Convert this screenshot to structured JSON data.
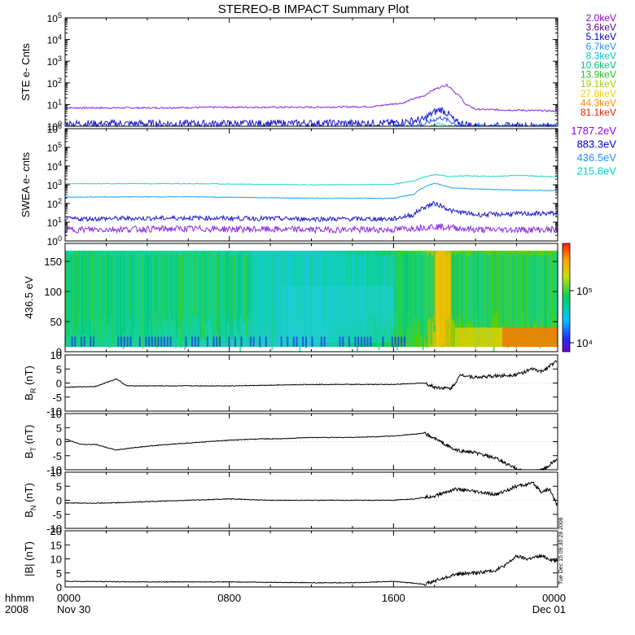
{
  "title": "STEREO-B IMPACT Summary Plot",
  "time_axis": {
    "corner_labels": [
      "hhmm",
      "2008"
    ],
    "ticks": [
      {
        "hour": 0,
        "label": "0000",
        "sub": "Nov 30"
      },
      {
        "hour": 8,
        "label": "0800",
        "sub": ""
      },
      {
        "hour": 16,
        "label": "1600",
        "sub": ""
      },
      {
        "hour": 24,
        "label": "0000",
        "sub": "Dec 01"
      }
    ],
    "range_hours": [
      0,
      24
    ]
  },
  "side_stamp": "Tue Dec 15 09:30:28 2008",
  "colors": {
    "line_black": "#000000",
    "purple": "#8a2be2",
    "dark_blue": "#1a1acd",
    "blue": "#1e5cff",
    "sky": "#1ea0ff",
    "teal": "#20d8c8"
  },
  "chart_data": [
    {
      "type": "line",
      "panel": "ste",
      "ylabel": "STE e- Cnts",
      "yscale": "log",
      "ylim_exp": [
        0,
        5
      ],
      "legend": [
        {
          "label": "2.0keV",
          "color": "#9400d3"
        },
        {
          "label": "3.6keV",
          "color": "#4b0082"
        },
        {
          "label": "5.1keV",
          "color": "#0000cd"
        },
        {
          "label": "6.7keV",
          "color": "#1e90ff"
        },
        {
          "label": "8.3keV",
          "color": "#00c8c8"
        },
        {
          "label": "10.6keV",
          "color": "#00c080"
        },
        {
          "label": "13.9keV",
          "color": "#20c020"
        },
        {
          "label": "19.1keV",
          "color": "#a0d000"
        },
        {
          "label": "27.8keV",
          "color": "#f0d000"
        },
        {
          "label": "44.3keV",
          "color": "#ff8c00"
        },
        {
          "label": "81.1keV",
          "color": "#e02000"
        }
      ],
      "series": [
        {
          "color": "#8a2be2",
          "points": [
            [
              0,
              7
            ],
            [
              4,
              7
            ],
            [
              8,
              7.5
            ],
            [
              12,
              7.5
            ],
            [
              15,
              8
            ],
            [
              16.5,
              12
            ],
            [
              17.5,
              25
            ],
            [
              18.2,
              60
            ],
            [
              18.6,
              80
            ],
            [
              19,
              35
            ],
            [
              19.5,
              10
            ],
            [
              20,
              6
            ],
            [
              22,
              5.5
            ],
            [
              24,
              5
            ]
          ]
        },
        {
          "color": "#1a1acd",
          "points": [
            [
              0,
              1.3
            ],
            [
              8,
              1.3
            ],
            [
              16,
              1.4
            ],
            [
              17.5,
              2
            ],
            [
              18.3,
              6
            ],
            [
              18.6,
              4
            ],
            [
              19,
              1.5
            ],
            [
              20,
              1
            ],
            [
              24,
              1
            ]
          ]
        },
        {
          "color": "#1e5cff",
          "points": [
            [
              16,
              1
            ],
            [
              17.5,
              1.2
            ],
            [
              18.3,
              2.5
            ],
            [
              18.8,
              1.6
            ],
            [
              19.2,
              1
            ],
            [
              24,
              1
            ]
          ]
        },
        {
          "color": "#20d8c8",
          "points": [
            [
              17.8,
              1
            ],
            [
              18.2,
              1.3
            ],
            [
              18.5,
              1.1
            ],
            [
              18.9,
              1
            ]
          ]
        }
      ]
    },
    {
      "type": "line",
      "panel": "swea",
      "ylabel": "SWEA e- cnts",
      "yscale": "log",
      "ylim_exp": [
        0,
        6
      ],
      "legend": [
        {
          "label": "1787.2eV",
          "color": "#9400d3"
        },
        {
          "label": "883.3eV",
          "color": "#0000cd"
        },
        {
          "label": "436.5eV",
          "color": "#1e90ff"
        },
        {
          "label": "215.8eV",
          "color": "#00d0d0"
        }
      ],
      "series": [
        {
          "color": "#20d8c8",
          "points": [
            [
              0,
              1150
            ],
            [
              6,
              1150
            ],
            [
              12,
              1000
            ],
            [
              16,
              1050
            ],
            [
              17,
              1600
            ],
            [
              18,
              3500
            ],
            [
              18.7,
              2800
            ],
            [
              19.5,
              3000
            ],
            [
              21,
              2800
            ],
            [
              22,
              3200
            ],
            [
              24,
              2600
            ]
          ]
        },
        {
          "color": "#1ea0ff",
          "points": [
            [
              0,
              220
            ],
            [
              6,
              230
            ],
            [
              12,
              190
            ],
            [
              16,
              190
            ],
            [
              17,
              300
            ],
            [
              18,
              1200
            ],
            [
              18.8,
              700
            ],
            [
              20,
              600
            ],
            [
              22,
              520
            ],
            [
              24,
              480
            ]
          ]
        },
        {
          "color": "#1a1acd",
          "points": [
            [
              0,
              15
            ],
            [
              6,
              17
            ],
            [
              12,
              15
            ],
            [
              16,
              15
            ],
            [
              17,
              25
            ],
            [
              18,
              100
            ],
            [
              18.8,
              40
            ],
            [
              20,
              25
            ],
            [
              22,
              28
            ],
            [
              24,
              30
            ]
          ]
        },
        {
          "color": "#8a2be2",
          "points": [
            [
              0,
              4
            ],
            [
              6,
              4.5
            ],
            [
              12,
              4
            ],
            [
              16,
              4
            ],
            [
              18,
              6
            ],
            [
              20,
              4
            ],
            [
              24,
              4
            ]
          ]
        }
      ]
    },
    {
      "type": "heatmap",
      "panel": "pad",
      "ylabel": "436.5 eV",
      "ylim": [
        0,
        180
      ],
      "yticks": [
        0,
        50,
        100,
        150
      ],
      "colorbar": {
        "scale": "log",
        "tick_labels": [
          "10⁵",
          "10⁴"
        ]
      }
    },
    {
      "type": "line",
      "panel": "br",
      "ylabel_main": "B",
      "ylabel_sub": "R",
      "ylabel_unit": "(nT)",
      "ylim": [
        -10,
        10
      ],
      "yticks": [
        -10,
        -5,
        0,
        5,
        10
      ],
      "series": [
        {
          "color": "#000000",
          "points": [
            [
              0,
              -1.5
            ],
            [
              1.5,
              -1.2
            ],
            [
              2.5,
              1.5
            ],
            [
              3,
              -1
            ],
            [
              6,
              -1
            ],
            [
              8,
              -1
            ],
            [
              10,
              -0.8
            ],
            [
              12,
              -0.5
            ],
            [
              16,
              -0.5
            ],
            [
              17.5,
              0
            ],
            [
              18,
              -1.5
            ],
            [
              18.8,
              -2
            ],
            [
              19.3,
              3
            ],
            [
              20,
              2
            ],
            [
              21,
              2.5
            ],
            [
              22,
              3
            ],
            [
              22.8,
              5
            ],
            [
              23.2,
              4
            ],
            [
              23.6,
              6
            ],
            [
              24,
              8
            ]
          ]
        }
      ]
    },
    {
      "type": "line",
      "panel": "bt",
      "ylabel_main": "B",
      "ylabel_sub": "T",
      "ylabel_unit": "(nT)",
      "ylim": [
        -10,
        10
      ],
      "yticks": [
        -10,
        -5,
        0,
        5,
        10
      ],
      "series": [
        {
          "color": "#000000",
          "points": [
            [
              0,
              1
            ],
            [
              0.8,
              -1
            ],
            [
              1.5,
              -1
            ],
            [
              2.5,
              -3
            ],
            [
              3.5,
              -2
            ],
            [
              5,
              -1
            ],
            [
              7,
              0
            ],
            [
              8,
              0.5
            ],
            [
              9.5,
              1
            ],
            [
              10.5,
              1
            ],
            [
              12,
              1.5
            ],
            [
              14,
              1.5
            ],
            [
              16,
              2
            ],
            [
              17.5,
              3
            ],
            [
              18.3,
              0
            ],
            [
              19,
              -3
            ],
            [
              20,
              -4
            ],
            [
              21,
              -6
            ],
            [
              21.8,
              -9
            ],
            [
              22.5,
              -11
            ],
            [
              23.3,
              -10
            ],
            [
              24,
              -6
            ]
          ]
        }
      ]
    },
    {
      "type": "line",
      "panel": "bn",
      "ylabel_main": "B",
      "ylabel_sub": "N",
      "ylabel_unit": "(nT)",
      "ylim": [
        -10,
        10
      ],
      "yticks": [
        -10,
        -5,
        0,
        5,
        10
      ],
      "series": [
        {
          "color": "#000000",
          "points": [
            [
              0,
              -1
            ],
            [
              2,
              -1
            ],
            [
              4,
              -0.5
            ],
            [
              6,
              0
            ],
            [
              8,
              0.5
            ],
            [
              10,
              0
            ],
            [
              12,
              0
            ],
            [
              14,
              0
            ],
            [
              16,
              0
            ],
            [
              17,
              0.5
            ],
            [
              18,
              1.5
            ],
            [
              19,
              4
            ],
            [
              20,
              3
            ],
            [
              21,
              2
            ],
            [
              22,
              5
            ],
            [
              22.8,
              6
            ],
            [
              23.2,
              3
            ],
            [
              23.6,
              4
            ],
            [
              24,
              -2
            ]
          ]
        }
      ]
    },
    {
      "type": "line",
      "panel": "bmag",
      "ylabel_main": "|B|",
      "ylabel_sub": "",
      "ylabel_unit": "(nT)",
      "ylim": [
        0,
        20
      ],
      "yticks": [
        0,
        5,
        10,
        15,
        20
      ],
      "series": [
        {
          "color": "#000000",
          "points": [
            [
              0,
              2
            ],
            [
              4,
              1.8
            ],
            [
              8,
              1.8
            ],
            [
              12,
              1.5
            ],
            [
              14,
              1.5
            ],
            [
              16,
              2
            ],
            [
              17.5,
              1
            ],
            [
              18.2,
              2.5
            ],
            [
              19,
              4.5
            ],
            [
              20,
              5
            ],
            [
              21,
              6
            ],
            [
              21.5,
              8
            ],
            [
              22,
              11
            ],
            [
              22.5,
              10
            ],
            [
              23.2,
              11
            ],
            [
              24,
              9
            ]
          ]
        }
      ]
    }
  ]
}
